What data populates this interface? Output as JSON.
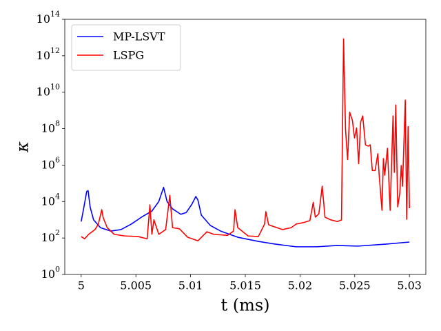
{
  "chart_data": {
    "type": "line",
    "x_label": "t (ms)",
    "y_label": "κ",
    "xlim": [
      4.9985,
      5.0315
    ],
    "xticks": [
      5,
      5.005,
      5.01,
      5.015,
      5.02,
      5.025,
      5.03
    ],
    "ylim": [
      1,
      100000000000000.0
    ],
    "y_scale": "log",
    "yticks": [
      {
        "value": 1,
        "label": "10^0"
      },
      {
        "value": 100,
        "label": "10^2"
      },
      {
        "value": 10000,
        "label": "10^4"
      },
      {
        "value": 1000000,
        "label": "10^6"
      },
      {
        "value": 100000000,
        "label": "10^8"
      },
      {
        "value": 10000000000,
        "label": "10^10"
      },
      {
        "value": 1000000000000,
        "label": "10^12"
      },
      {
        "value": 100000000000000,
        "label": "10^14"
      }
    ],
    "grid": false,
    "legend": "upper left",
    "series": [
      {
        "name": "MP-LSVT",
        "color": "#0000ff",
        "x": [
          5,
          5.00025,
          5.0005,
          5.00063,
          5.00082,
          5.00113,
          5.00176,
          5.0027,
          5.00364,
          5.00458,
          5.00552,
          5.00646,
          5.00709,
          5.00753,
          5.00785,
          5.00835,
          5.0091,
          5.0096,
          5.01011,
          5.01048,
          5.01067,
          5.01098,
          5.0118,
          5.01274,
          5.01431,
          5.01619,
          5.01776,
          5.01964,
          5.02153,
          5.02341,
          5.02529,
          5.0278,
          5.03
        ],
        "values": [
          800,
          5000,
          35000,
          40000,
          5000,
          1000,
          370,
          240,
          290,
          580,
          1400,
          3000,
          10000,
          60000,
          10000,
          4000,
          2000,
          2500,
          7000,
          19000,
          12000,
          1800,
          490,
          240,
          110,
          65,
          46,
          33,
          33,
          39,
          36,
          46,
          60
        ]
      },
      {
        "name": "LSPG",
        "color": "#ff0000",
        "x": [
          5,
          5.00031,
          5.00069,
          5.00126,
          5.00157,
          5.00188,
          5.00201,
          5.00238,
          5.00301,
          5.00395,
          5.00521,
          5.00603,
          5.00628,
          5.00646,
          5.00665,
          5.00709,
          5.00772,
          5.0081,
          5.00835,
          5.00898,
          5.00973,
          5.01067,
          5.01149,
          5.01211,
          5.01337,
          5.01393,
          5.01406,
          5.01431,
          5.01525,
          5.01619,
          5.01676,
          5.01688,
          5.01713,
          5.01839,
          5.0192,
          5.01964,
          5.02027,
          5.0209,
          5.02121,
          5.0214,
          5.02172,
          5.02203,
          5.02228,
          5.02278,
          5.02341,
          5.02379,
          5.02398,
          5.02416,
          5.02435,
          5.02454,
          5.02479,
          5.02498,
          5.02517,
          5.02536,
          5.02554,
          5.02573,
          5.02598,
          5.02623,
          5.02642,
          5.02661,
          5.02686,
          5.02711,
          5.02724,
          5.02749,
          5.02762,
          5.02774,
          5.02799,
          5.02824,
          5.0285,
          5.02862,
          5.02875,
          5.02893,
          5.02912,
          5.02925,
          5.02937,
          5.02962,
          5.02975,
          5.02988,
          5.03
        ],
        "values": [
          120,
          90,
          160,
          290,
          580,
          3600,
          1300,
          370,
          160,
          130,
          120,
          90,
          6600,
          160,
          1000,
          160,
          290,
          22000,
          370,
          320,
          110,
          70,
          220,
          160,
          140,
          240,
          3600,
          370,
          130,
          120,
          580,
          2800,
          530,
          290,
          370,
          580,
          690,
          900,
          9000,
          1400,
          2100,
          70000,
          1400,
          1000,
          800,
          970,
          8500000000000.0,
          90000000.0,
          2000000.0,
          800000000.0,
          280000000.0,
          31000000.0,
          110000000.0,
          1200000.0,
          230000000.0,
          500000000.0,
          13000000.0,
          11000000.0,
          13000000.0,
          500000.0,
          500000.0,
          4200000.0,
          260000.0,
          3300,
          2300000.0,
          280000.0,
          8300000.0,
          3300,
          500000000.0,
          400000.0,
          2000000000.0,
          5100,
          29000.0,
          950000.0,
          69000.0,
          3700000000.0,
          1070,
          130000000.0,
          4300
        ]
      }
    ]
  }
}
